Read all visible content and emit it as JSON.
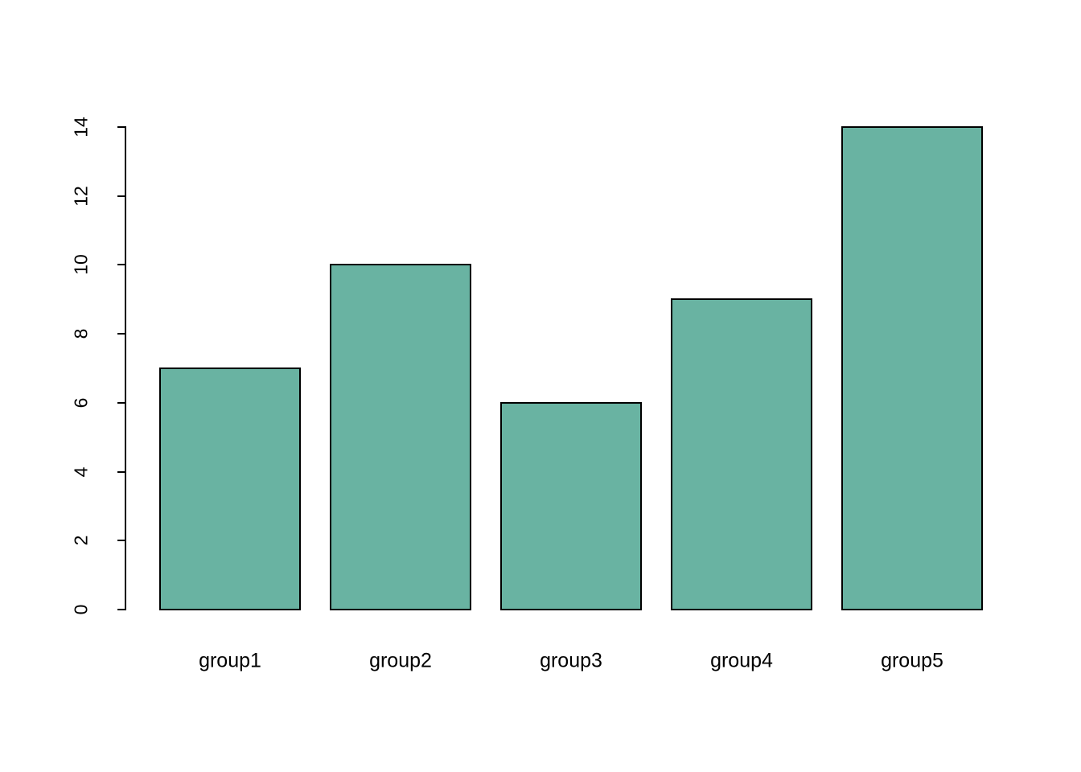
{
  "chart_data": {
    "type": "bar",
    "categories": [
      "group1",
      "group2",
      "group3",
      "group4",
      "group5"
    ],
    "values": [
      7,
      10,
      6,
      9,
      14
    ],
    "title": "",
    "xlabel": "",
    "ylabel": "",
    "ylim": [
      0,
      14
    ],
    "yticks": [
      0,
      2,
      4,
      6,
      8,
      10,
      12,
      14
    ],
    "grid": false,
    "legend": null,
    "colors": {
      "bar_fill": "#69b3a2",
      "bar_border": "#000000",
      "axis": "#000000",
      "text": "#000000",
      "background": "#ffffff"
    }
  }
}
